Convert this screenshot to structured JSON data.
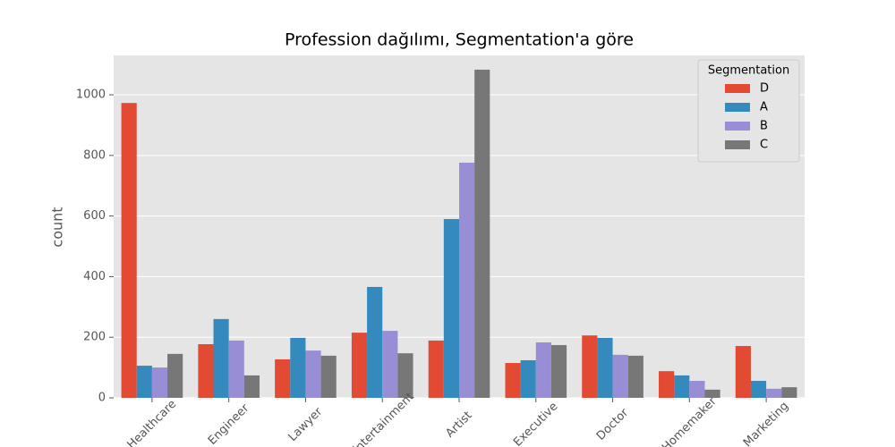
{
  "chart_data": {
    "type": "bar",
    "title": "Profession dağılımı, Segmentation'a göre",
    "y_label": "count",
    "categories": [
      "Healthcare",
      "Engineer",
      "Lawyer",
      "Entertainment",
      "Artist",
      "Executive",
      "Doctor",
      "Homemaker",
      "Marketing"
    ],
    "series": [
      {
        "name": "D",
        "color": "#E24A33",
        "values": [
          973,
          177,
          127,
          215,
          189,
          115,
          206,
          88,
          171
        ]
      },
      {
        "name": "A",
        "color": "#348ABD",
        "values": [
          106,
          260,
          198,
          366,
          590,
          124,
          198,
          74,
          56
        ]
      },
      {
        "name": "B",
        "color": "#988ED5",
        "values": [
          100,
          189,
          156,
          221,
          776,
          183,
          142,
          56,
          30
        ]
      },
      {
        "name": "C",
        "color": "#777777",
        "values": [
          145,
          74,
          139,
          147,
          1083,
          174,
          139,
          27,
          35
        ]
      }
    ],
    "legend_title": "Segmentation",
    "legend": "upper right",
    "ylim": [
      0,
      1130
    ],
    "yticks": [
      0,
      200,
      400,
      600,
      800,
      1000
    ],
    "grid": true
  }
}
